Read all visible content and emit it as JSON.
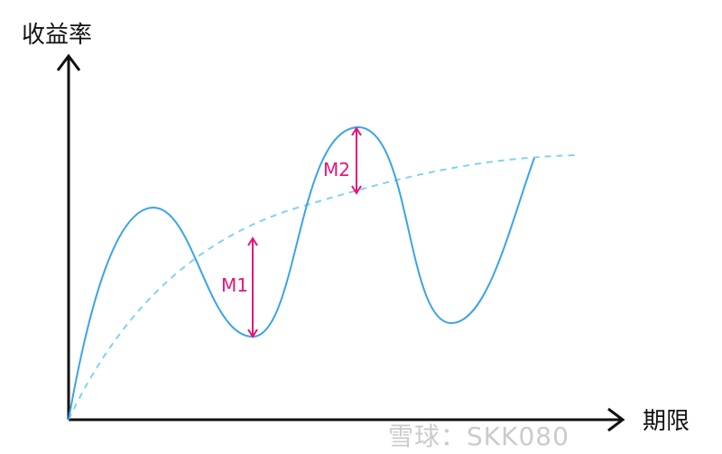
{
  "y_axis_label": "收益率",
  "x_axis_label": "期限",
  "annotations": [
    {
      "label": "M1"
    },
    {
      "label": "M2"
    }
  ],
  "watermark": "雪球：SKK080",
  "colors": {
    "solid_curve": "#3ba3e8",
    "dashed_curve": "#7fd3f2",
    "annotation": "#e5157a",
    "axes": "#111111"
  }
}
